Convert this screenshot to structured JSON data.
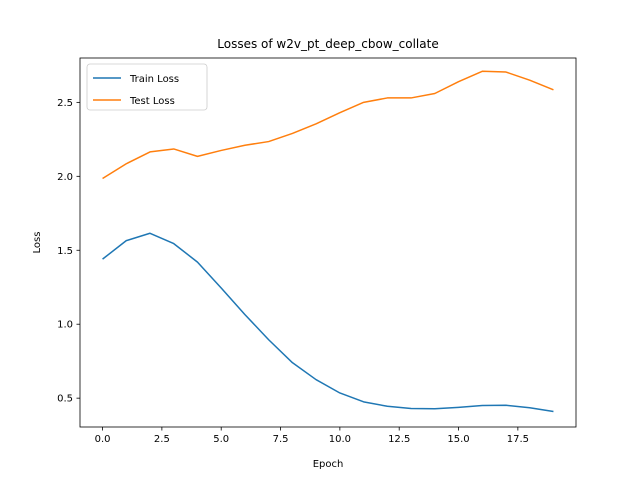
{
  "chart_data": {
    "type": "line",
    "title": "Losses of w2v_pt_deep_cbow_collate",
    "xlabel": "Epoch",
    "ylabel": "Loss",
    "xlim": [
      -0.95,
      19.95
    ],
    "ylim": [
      0.305,
      2.8
    ],
    "x": [
      0,
      1,
      2,
      3,
      4,
      5,
      6,
      7,
      8,
      9,
      10,
      11,
      12,
      13,
      14,
      15,
      16,
      17,
      18,
      19
    ],
    "xticks": [
      0.0,
      2.5,
      5.0,
      7.5,
      10.0,
      12.5,
      15.0,
      17.5
    ],
    "xtick_labels": [
      "0.0",
      "2.5",
      "5.0",
      "7.5",
      "10.0",
      "12.5",
      "15.0",
      "17.5"
    ],
    "yticks": [
      0.5,
      1.0,
      1.5,
      2.0,
      2.5
    ],
    "ytick_labels": [
      "0.5",
      "1.0",
      "1.5",
      "2.0",
      "2.5"
    ],
    "grid": false,
    "legend_position": "top-left",
    "series": [
      {
        "name": "Train Loss",
        "color": "#1f77b4",
        "values": [
          1.44,
          1.565,
          1.615,
          1.545,
          1.42,
          1.245,
          1.065,
          0.895,
          0.74,
          0.625,
          0.535,
          0.475,
          0.445,
          0.43,
          0.428,
          0.438,
          0.45,
          0.452,
          0.435,
          0.41
        ]
      },
      {
        "name": "Test Loss",
        "color": "#ff7f0e",
        "values": [
          1.985,
          2.085,
          2.165,
          2.185,
          2.135,
          2.175,
          2.21,
          2.235,
          2.29,
          2.355,
          2.43,
          2.5,
          2.53,
          2.53,
          2.56,
          2.64,
          2.71,
          2.705,
          2.65,
          2.585
        ]
      }
    ]
  }
}
